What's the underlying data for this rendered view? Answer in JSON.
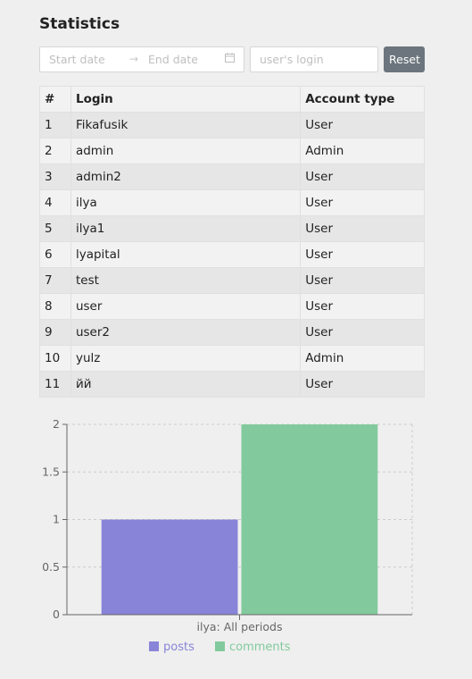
{
  "page": {
    "title": "Statistics"
  },
  "filters": {
    "start_placeholder": "Start date",
    "end_placeholder": "End date",
    "arrow": "→",
    "login_placeholder": "user's login",
    "reset_label": "Reset"
  },
  "table": {
    "headers": [
      "#",
      "Login",
      "Account type"
    ],
    "rows": [
      [
        "1",
        "Fikafusik",
        "User"
      ],
      [
        "2",
        "admin",
        "Admin"
      ],
      [
        "3",
        "admin2",
        "User"
      ],
      [
        "4",
        "ilya",
        "User"
      ],
      [
        "5",
        "ilya1",
        "User"
      ],
      [
        "6",
        "lyapital",
        "User"
      ],
      [
        "7",
        "test",
        "User"
      ],
      [
        "8",
        "user",
        "User"
      ],
      [
        "9",
        "user2",
        "User"
      ],
      [
        "10",
        "yulz",
        "Admin"
      ],
      [
        "11",
        "йй",
        "User"
      ]
    ]
  },
  "chart_data": {
    "type": "bar",
    "categories": [
      "ilya: All periods"
    ],
    "series": [
      {
        "name": "posts",
        "values": [
          1
        ],
        "color": "#8884d8"
      },
      {
        "name": "comments",
        "values": [
          2
        ],
        "color": "#82ca9d"
      }
    ],
    "ylim": [
      0,
      2
    ],
    "yticks": [
      "0",
      "0.5",
      "1",
      "1.5",
      "2"
    ],
    "grid": true,
    "legend": "bottom"
  }
}
